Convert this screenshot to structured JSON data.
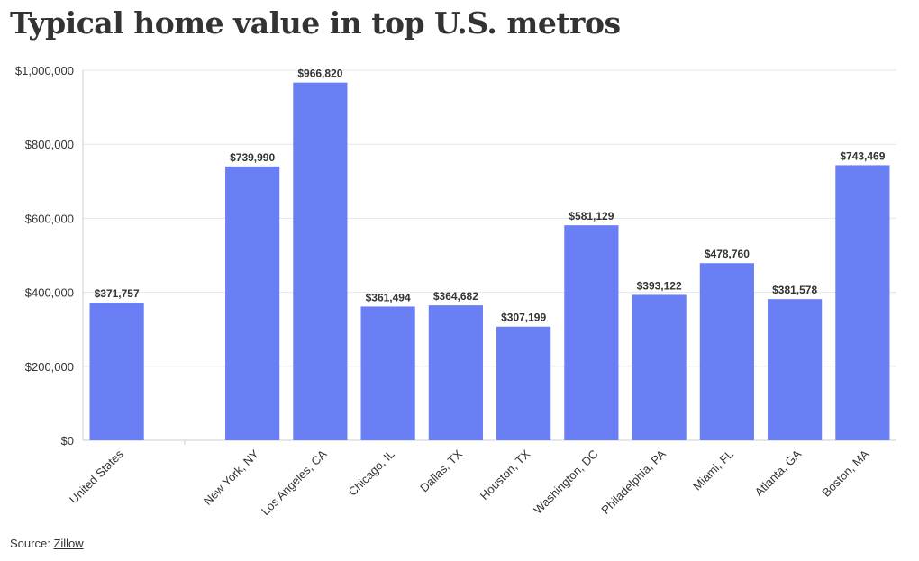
{
  "header": {
    "title": "Typical home value in top U.S. metros"
  },
  "footer": {
    "source_label": "Source:",
    "source_link": "Zillow"
  },
  "colors": {
    "bar": "#6b7ff5",
    "grid": "#e6e6e6",
    "text": "#333333"
  },
  "chart_data": {
    "type": "bar",
    "title": "Typical home value in top U.S. metros",
    "xlabel": "",
    "ylabel": "",
    "ylim": [
      0,
      1000000
    ],
    "yticks": [
      0,
      200000,
      400000,
      600000,
      800000,
      1000000
    ],
    "ytick_labels": [
      "$0",
      "$200,000",
      "$400,000",
      "$600,000",
      "$800,000",
      "$1,000,000"
    ],
    "grid": true,
    "categories": [
      "United States",
      "",
      "New York, NY",
      "Los Angeles, CA",
      "Chicago, IL",
      "Dallas, TX",
      "Houston, TX",
      "Washington, DC",
      "Philadelphia, PA",
      "Miami, FL",
      "Atlanta, GA",
      "Boston, MA"
    ],
    "values": [
      371757,
      null,
      739990,
      966820,
      361494,
      364682,
      307199,
      581129,
      393122,
      478760,
      381578,
      743469
    ],
    "value_labels": [
      "$371,757",
      "",
      "$739,990",
      "$966,820",
      "$361,494",
      "$364,682",
      "$307,199",
      "$581,129",
      "$393,122",
      "$478,760",
      "$381,578",
      "$743,469"
    ]
  }
}
